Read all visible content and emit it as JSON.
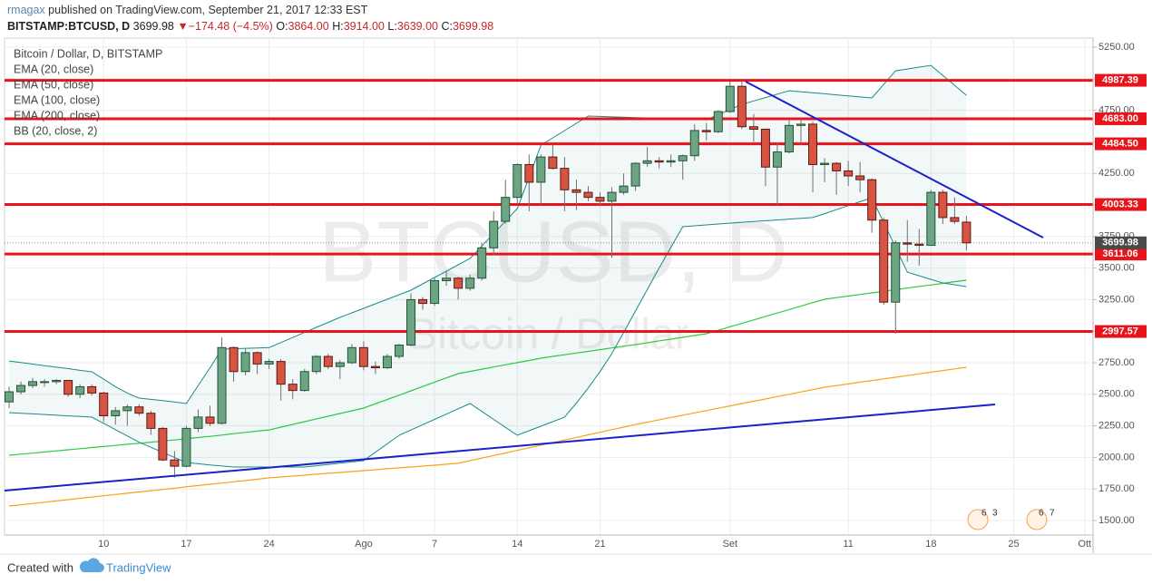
{
  "header": {
    "author": "rmagax",
    "published": "published on TradingView.com, September 21, 2017 12:33 EST",
    "symbol": "BITSTAMP:BTCUSD, D",
    "last": "3699.98",
    "change": "▼−174.48 (−4.5%)",
    "ohlc": [
      {
        "key": "O:",
        "value": "3864.00"
      },
      {
        "key": "H:",
        "value": "3914.00"
      },
      {
        "key": "L:",
        "value": "3639.00"
      },
      {
        "key": "C:",
        "value": "3699.98"
      }
    ]
  },
  "chart_data": {
    "type": "candlestick",
    "title": "Bitcoin / Dollar, D, BITSTAMP",
    "watermark": {
      "symbol": "BTCUSD, D",
      "description": "Bitcoin / Dollar"
    },
    "categories": [
      null,
      null,
      null,
      null,
      null,
      null,
      null,
      null,
      "10",
      null,
      null,
      null,
      null,
      null,
      null,
      "17",
      null,
      null,
      null,
      null,
      null,
      null,
      "24",
      null,
      null,
      null,
      null,
      null,
      null,
      null,
      "Ago",
      null,
      null,
      null,
      null,
      null,
      "7",
      null,
      null,
      null,
      null,
      null,
      null,
      "14",
      null,
      null,
      null,
      null,
      null,
      null,
      "21",
      null,
      null,
      null,
      null,
      null,
      null,
      null,
      null,
      null,
      null,
      "Set",
      null,
      null,
      null,
      null,
      null,
      null,
      null,
      null,
      null,
      "11",
      null,
      null,
      null,
      null,
      null,
      null,
      "18",
      null,
      null,
      null,
      null,
      null,
      null,
      "25",
      null,
      null,
      null,
      null,
      null,
      "Ott"
    ],
    "open": [
      2440,
      2520,
      2570,
      2600,
      2600,
      2610,
      2500,
      2560,
      2510,
      2330,
      2370,
      2400,
      2350,
      2230,
      1980,
      1930,
      2230,
      2320,
      2270,
      2870,
      2680,
      2830,
      2740,
      2760,
      2580,
      2530,
      2680,
      2800,
      2720,
      2750,
      2870,
      2720,
      2710,
      2800,
      2890,
      3250,
      3220,
      3400,
      3420,
      3340,
      3420,
      3660,
      3870,
      4060,
      4320,
      4180,
      4380,
      4290,
      4120,
      4100,
      4060,
      4030,
      4100,
      4150,
      4330,
      4350,
      4340,
      4350,
      4390,
      4590,
      4580,
      4740,
      4940,
      4620,
      4600,
      4300,
      4420,
      4630,
      4640,
      4320,
      4330,
      4270,
      4230,
      4200,
      3880,
      3230,
      3700,
      3690,
      3680,
      4100,
      3900,
      3864,
      null,
      null,
      null,
      null,
      null,
      null,
      null,
      null,
      null,
      null
    ],
    "high": [
      2560,
      2600,
      2630,
      2620,
      2620,
      2610,
      2580,
      2580,
      2520,
      2400,
      2420,
      2420,
      2370,
      2240,
      2050,
      2250,
      2380,
      2410,
      2950,
      2880,
      2860,
      2840,
      2780,
      2780,
      2620,
      2700,
      2810,
      2820,
      2770,
      2900,
      2920,
      2760,
      2820,
      2900,
      3300,
      3270,
      3420,
      3480,
      3430,
      3450,
      3700,
      3950,
      4200,
      4330,
      4400,
      4400,
      4480,
      4380,
      4200,
      4150,
      4100,
      4140,
      4250,
      4340,
      4460,
      4380,
      4400,
      4400,
      4640,
      4650,
      4750,
      4980,
      4990,
      4720,
      4600,
      4490,
      4670,
      4680,
      4660,
      4370,
      4340,
      4350,
      4340,
      4210,
      3900,
      3720,
      3880,
      3810,
      4120,
      4120,
      4060,
      3914,
      null,
      null,
      null,
      null,
      null,
      null,
      null,
      null,
      null,
      null
    ],
    "low": [
      2390,
      2500,
      2550,
      2560,
      2580,
      2480,
      2470,
      2490,
      2280,
      2260,
      2250,
      2330,
      2180,
      1970,
      1840,
      1920,
      2200,
      2250,
      2260,
      2600,
      2650,
      2660,
      2700,
      2450,
      2460,
      2520,
      2660,
      2700,
      2620,
      2740,
      2690,
      2660,
      2700,
      2780,
      2880,
      3170,
      3200,
      3360,
      3250,
      3320,
      3400,
      3600,
      3850,
      4000,
      3950,
      4000,
      4280,
      3950,
      3960,
      4030,
      3990,
      3580,
      4080,
      4110,
      4300,
      4290,
      4300,
      4200,
      4350,
      4510,
      4570,
      4730,
      4600,
      4500,
      4150,
      4000,
      4410,
      4480,
      4100,
      4180,
      4080,
      4150,
      4100,
      3780,
      3210,
      2980,
      3550,
      3520,
      3680,
      3850,
      3850,
      3639,
      null,
      null,
      null,
      null,
      null,
      null,
      null,
      null,
      null,
      null
    ],
    "close": [
      2520,
      2570,
      2600,
      2600,
      2610,
      2500,
      2560,
      2510,
      2330,
      2370,
      2400,
      2350,
      2230,
      1980,
      1930,
      2230,
      2320,
      2270,
      2870,
      2680,
      2830,
      2740,
      2760,
      2580,
      2530,
      2680,
      2800,
      2720,
      2750,
      2870,
      2720,
      2710,
      2800,
      2890,
      3250,
      3220,
      3400,
      3420,
      3340,
      3420,
      3660,
      3870,
      4060,
      4320,
      4180,
      4380,
      4290,
      4120,
      4100,
      4060,
      4030,
      4100,
      4150,
      4330,
      4350,
      4340,
      4350,
      4390,
      4590,
      4580,
      4740,
      4940,
      4620,
      4600,
      4300,
      4420,
      4630,
      4640,
      4320,
      4330,
      4270,
      4230,
      4200,
      3880,
      3230,
      3700,
      3690,
      3680,
      4100,
      3900,
      3870,
      3699.98,
      null,
      null,
      null,
      null,
      null,
      null,
      null,
      null,
      null,
      null
    ],
    "up_color": "#6ba583",
    "down_color": "#d75442",
    "indicators": [
      {
        "name": "EMA (20, close)"
      },
      {
        "name": "EMA (50, close)"
      },
      {
        "name": "EMA (100, close)",
        "color": "#2ecc40",
        "values": [
          2017,
          2026,
          2034,
          2043,
          2052,
          2060,
          2069,
          2078,
          2086,
          2095,
          2104,
          2112,
          2121,
          2130,
          2138,
          2147,
          2157,
          2167,
          2177,
          2188,
          2198,
          2208,
          2218,
          2240,
          2261,
          2283,
          2305,
          2326,
          2348,
          2369,
          2391,
          2425,
          2459,
          2493,
          2527,
          2562,
          2596,
          2630,
          2664,
          2681,
          2699,
          2716,
          2734,
          2751,
          2768,
          2786,
          2800,
          2813,
          2827,
          2840,
          2854,
          2867,
          2881,
          2894,
          2908,
          2923,
          2937,
          2951,
          2966,
          2980,
          3007,
          3035,
          3062,
          3089,
          3117,
          3144,
          3171,
          3198,
          3226,
          3253,
          3266,
          3278,
          3291,
          3303,
          3316,
          3329,
          3341,
          3354,
          3366,
          3379,
          3392,
          3404,
          null,
          null,
          null,
          null,
          null,
          null,
          null,
          null,
          null,
          null
        ]
      },
      {
        "name": "EMA (200, close)",
        "color": "#f7a21b",
        "values": [
          1615,
          1625,
          1635,
          1645,
          1655,
          1665,
          1676,
          1686,
          1696,
          1706,
          1716,
          1726,
          1736,
          1746,
          1756,
          1767,
          1777,
          1787,
          1797,
          1807,
          1817,
          1827,
          1838,
          1845,
          1852,
          1859,
          1867,
          1874,
          1881,
          1888,
          1895,
          1902,
          1910,
          1917,
          1924,
          1931,
          1938,
          1946,
          1953,
          1974,
          1994,
          2015,
          2035,
          2056,
          2076,
          2097,
          2117,
          2138,
          2158,
          2179,
          2199,
          2220,
          2240,
          2261,
          2279,
          2298,
          2316,
          2335,
          2353,
          2371,
          2390,
          2408,
          2427,
          2445,
          2463,
          2482,
          2500,
          2519,
          2537,
          2556,
          2569,
          2582,
          2596,
          2609,
          2622,
          2635,
          2648,
          2662,
          2675,
          2688,
          2701,
          2714,
          null,
          null,
          null,
          null,
          null,
          null,
          null,
          null,
          null,
          null
        ]
      },
      {
        "name": "BB (20, close, 2)",
        "color": "#1a8a8a",
        "upper": [
          2764,
          2752,
          2739,
          2727,
          2715,
          2703,
          2690,
          2678,
          2620,
          2560,
          2510,
          2470,
          2460,
          2450,
          2440,
          2427,
          2570,
          2710,
          2858,
          2861,
          2864,
          2867,
          2870,
          2910,
          2950,
          2990,
          3030,
          3070,
          3109,
          3145,
          3181,
          3217,
          3253,
          3289,
          3325,
          3375,
          3425,
          3475,
          3526,
          3576,
          3675,
          3774,
          3872,
          3971,
          4220,
          4474,
          4532,
          4589,
          4647,
          4704,
          4701,
          4698,
          4695,
          4692,
          4689,
          4686,
          4683,
          4680,
          4677,
          4675,
          4716,
          4756,
          4797,
          4824,
          4851,
          4878,
          4905,
          4897,
          4889,
          4881,
          4872,
          4864,
          4856,
          4848,
          4955,
          5063,
          5077,
          5092,
          5106,
          5027,
          4948,
          4869,
          null,
          null,
          null,
          null,
          null,
          null,
          null,
          null,
          null,
          null
        ],
        "lower": [
          2355,
          2350,
          2345,
          2340,
          2334,
          2329,
          2324,
          2319,
          2270,
          2220,
          2170,
          2120,
          2080,
          2040,
          2000,
          1960,
          1950,
          1940,
          1932,
          1924,
          1924,
          1924,
          1924,
          1924,
          1924,
          1924,
          1934,
          1944,
          1954,
          1964,
          1974,
          2041,
          2108,
          2175,
          2217,
          2259,
          2301,
          2343,
          2385,
          2427,
          2364,
          2301,
          2238,
          2175,
          2211,
          2247,
          2283,
          2319,
          2430,
          2550,
          2680,
          2822,
          2990,
          3160,
          3330,
          3500,
          3665,
          3828,
          3835,
          3842,
          3849,
          3856,
          3863,
          3869,
          3875,
          3881,
          3888,
          3894,
          3900,
          3931,
          3963,
          3994,
          4026,
          4057,
          3860,
          3664,
          3468,
          3439,
          3410,
          3382,
          3368,
          3353,
          null,
          null,
          null,
          null,
          null,
          null,
          null,
          null,
          null,
          null
        ]
      }
    ],
    "levels": [
      {
        "value": 4987.39,
        "label": "4987.39"
      },
      {
        "value": 4683,
        "label": "4683.00"
      },
      {
        "value": 4484.5,
        "label": "4484.50"
      },
      {
        "value": 4003.33,
        "label": "4003.33"
      },
      {
        "value": 3611.06,
        "label": "3611.06"
      },
      {
        "value": 2997.57,
        "label": "2997.57"
      }
    ],
    "level_color": "#e8141b",
    "last_price": 3699.98,
    "ylim": [
      1385,
      5322
    ],
    "yticks": [
      {
        "value": 1500,
        "label": "1500.00"
      },
      {
        "value": 1750,
        "label": "1750.00"
      },
      {
        "value": 2000,
        "label": "2000.00"
      },
      {
        "value": 2250,
        "label": "2250.00"
      },
      {
        "value": 2500,
        "label": "2500.00"
      },
      {
        "value": 2750,
        "label": "2750.00"
      },
      {
        "value": 3000,
        "label": "3000.00"
      },
      {
        "value": 3250,
        "label": "3250.00"
      },
      {
        "value": 3500,
        "label": "3500.00"
      },
      {
        "value": 3750,
        "label": "3750.00"
      },
      {
        "value": 4000,
        "label": "4000.00"
      },
      {
        "value": 4250,
        "label": "4250.00"
      },
      {
        "value": 4500,
        "label": "4500.00"
      },
      {
        "value": 4750,
        "label": "4750.00"
      },
      {
        "value": 5000,
        "label": "5000.00"
      },
      {
        "value": 5250,
        "label": "5250.00"
      }
    ],
    "grid": true,
    "events": [
      [
        "6",
        "3"
      ],
      [
        "6",
        "7"
      ]
    ]
  },
  "footer": {
    "created": "Created with",
    "brand": "TradingView"
  }
}
